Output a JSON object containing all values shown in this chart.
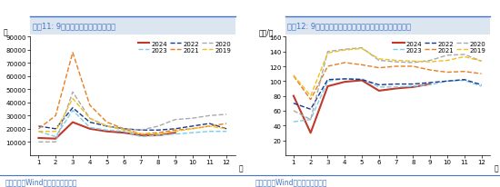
{
  "chart1": {
    "title": "图表11: 9月挖掘机销售环比延续改善",
    "ylabel": "台",
    "xlabel_suffix": "月",
    "ylim": [
      0,
      90000
    ],
    "yticks": [
      0,
      10000,
      20000,
      30000,
      40000,
      50000,
      60000,
      70000,
      80000,
      90000
    ],
    "ytick_labels": [
      "0",
      "10000",
      "20000",
      "30000",
      "40000",
      "50000",
      "60000",
      "70000",
      "80000",
      "90000"
    ],
    "series": {
      "2024": {
        "color": "#c0392b",
        "dash": "solid",
        "data": [
          13000,
          12500,
          25000,
          20000,
          18000,
          17000,
          15000,
          15000,
          17000,
          null,
          null,
          null
        ]
      },
      "2023": {
        "color": "#7ecde8",
        "dash": "dashed",
        "data": [
          18000,
          14000,
          34000,
          21000,
          19000,
          18000,
          14000,
          15000,
          16000,
          17000,
          18000,
          18000
        ]
      },
      "2022": {
        "color": "#1a3a8a",
        "dash": "dashed",
        "data": [
          22000,
          20000,
          36000,
          25000,
          22000,
          20000,
          19000,
          19000,
          20000,
          22000,
          24000,
          20000
        ]
      },
      "2021": {
        "color": "#e67e22",
        "dash": "dashed",
        "data": [
          20000,
          30000,
          78000,
          38000,
          25000,
          20000,
          16000,
          17000,
          19000,
          20000,
          22000,
          24000
        ]
      },
      "2020": {
        "color": "#aaaaaa",
        "dash": "dashed",
        "data": [
          10000,
          10000,
          48000,
          28000,
          22000,
          20000,
          19000,
          22000,
          27000,
          28000,
          30000,
          31000
        ]
      },
      "2019": {
        "color": "#f0c020",
        "dash": "dashed",
        "data": [
          18000,
          18000,
          43000,
          28000,
          22000,
          19000,
          16000,
          16000,
          18000,
          20000,
          22000,
          20000
        ]
      }
    }
  },
  "chart2": {
    "title": "图表12: 9月挖掘机开工小时数同样有所回升，但仍在低位",
    "ylabel": "小时/月",
    "xlabel_suffix": "月",
    "ylim": [
      0,
      160
    ],
    "yticks": [
      0,
      20,
      40,
      60,
      80,
      100,
      120,
      140,
      160
    ],
    "ytick_labels": [
      "0",
      "20",
      "40",
      "60",
      "80",
      "100",
      "120",
      "140",
      "160"
    ],
    "series": {
      "2024": {
        "color": "#c0392b",
        "dash": "solid",
        "data": [
          80,
          30,
          93,
          99,
          101,
          87,
          90,
          92,
          96,
          null,
          null,
          null
        ]
      },
      "2023": {
        "color": "#7ecde8",
        "dash": "dashed",
        "data": [
          45,
          48,
          100,
          103,
          103,
          92,
          92,
          93,
          95,
          100,
          101,
          93
        ]
      },
      "2022": {
        "color": "#1a3a8a",
        "dash": "dashed",
        "data": [
          70,
          62,
          102,
          103,
          102,
          95,
          96,
          96,
          98,
          100,
          102,
          95
        ]
      },
      "2021": {
        "color": "#e67e22",
        "dash": "dashed",
        "data": [
          107,
          75,
          120,
          125,
          122,
          118,
          120,
          120,
          115,
          112,
          113,
          110
        ]
      },
      "2020": {
        "color": "#aaaaaa",
        "dash": "dashed",
        "data": [
          60,
          48,
          140,
          143,
          145,
          128,
          126,
          125,
          128,
          135,
          136,
          127
        ]
      },
      "2019": {
        "color": "#f0c020",
        "dash": "dashed",
        "data": [
          108,
          80,
          138,
          142,
          144,
          130,
          128,
          127,
          126,
          128,
          133,
          127
        ]
      }
    }
  },
  "footer": "资料来源：Wind，国盛证券研究所",
  "title_color": "#4472c4",
  "title_fontsize": 6,
  "footer_color": "#4472c4",
  "footer_fontsize": 5.5,
  "background_color": "#ffffff",
  "header_bg": "#dce6f1",
  "legend_order": [
    "2024",
    "2023",
    "2022",
    "2021",
    "2020",
    "2019"
  ]
}
